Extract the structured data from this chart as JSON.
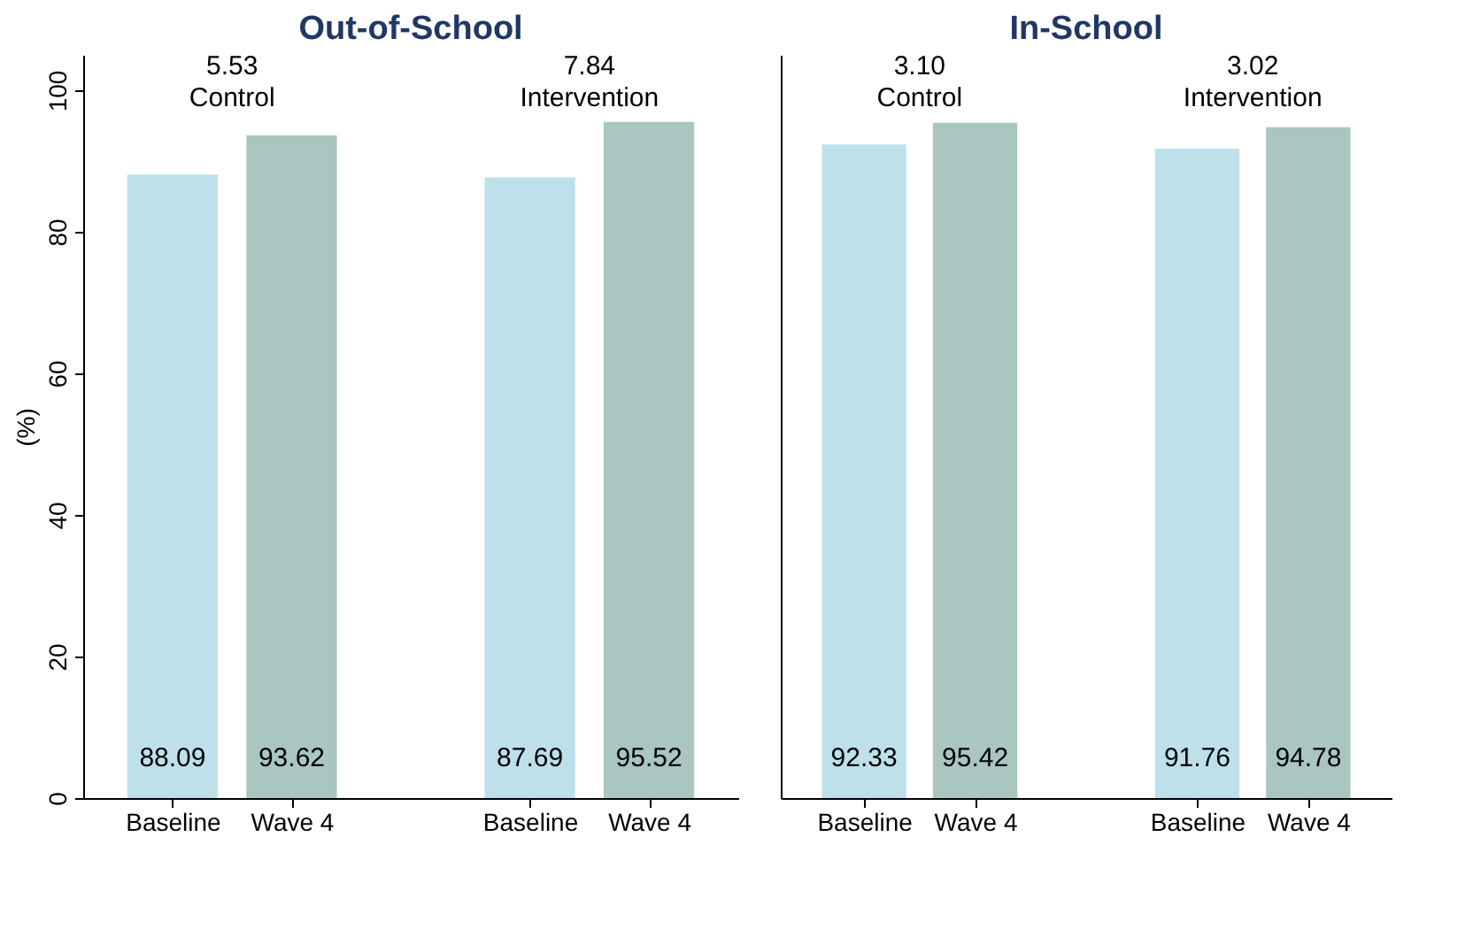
{
  "chart_data": [
    {
      "type": "bar",
      "title": "Out-of-School",
      "ylabel": "(%)",
      "categories": [
        "Baseline",
        "Wave 4",
        null,
        "Baseline",
        "Wave 4"
      ],
      "values": [
        88.09,
        93.62,
        null,
        87.69,
        95.52
      ],
      "colors": [
        "#bde0eb",
        "#a9c6c1",
        null,
        "#bde0eb",
        "#a9c6c1"
      ],
      "data_labels": true,
      "ylim": [
        0,
        105
      ],
      "yticks": [
        0,
        20,
        40,
        60,
        80,
        100
      ],
      "grid": false,
      "annotations": [
        "5.53",
        "Control",
        "7.84",
        "Intervention"
      ]
    },
    {
      "type": "bar",
      "title": "In-School",
      "categories": [
        "Baseline",
        "Wave 4",
        null,
        "Baseline",
        "Wave 4"
      ],
      "values": [
        92.33,
        95.42,
        null,
        91.76,
        94.78
      ],
      "colors": [
        "#bde0eb",
        "#a9c6c1",
        null,
        "#bde0eb",
        "#a9c6c1"
      ],
      "data_labels": true,
      "ylim": [
        0,
        105
      ],
      "yticks": [
        0,
        20,
        40,
        60,
        80,
        100
      ],
      "grid": false,
      "tick_labels": "x",
      "annotations": [
        "3.10",
        "Control",
        "3.02",
        "Intervention"
      ]
    }
  ]
}
